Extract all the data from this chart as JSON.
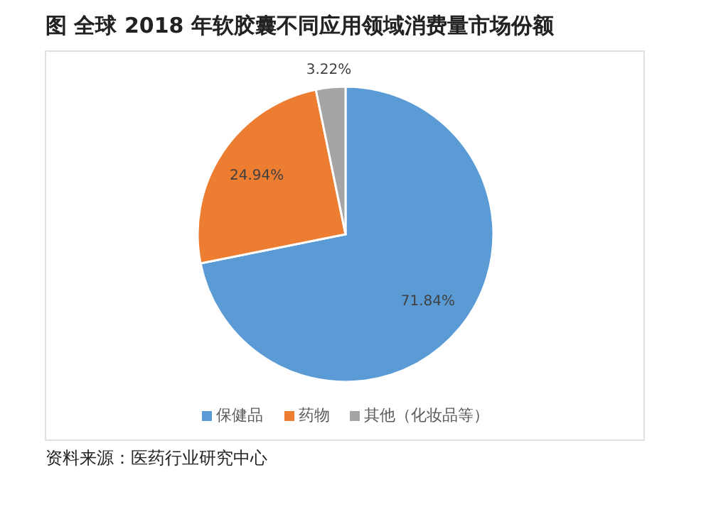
{
  "chart_data": {
    "type": "pie",
    "title": "图  全球 2018 年软胶囊不同应用领域消费量市场份额",
    "categories": [
      "保健品",
      "药物",
      "其他（化妆品等）"
    ],
    "values": [
      71.84,
      24.94,
      3.22
    ],
    "value_labels": [
      "71.84%",
      "24.94%",
      "3.22%"
    ],
    "colors": [
      "#5b9bd5",
      "#ed7d31",
      "#a5a5a5"
    ],
    "legend": "bottom",
    "annotations": [
      "资料来源：医药行业研究中心"
    ]
  }
}
